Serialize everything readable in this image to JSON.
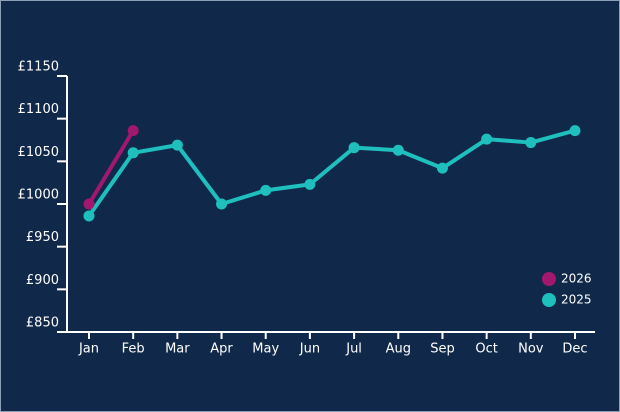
{
  "chart_data": {
    "type": "line",
    "categories": [
      "Jan",
      "Feb",
      "Mar",
      "Apr",
      "May",
      "Jun",
      "Jul",
      "Aug",
      "Sep",
      "Oct",
      "Nov",
      "Dec"
    ],
    "series": [
      {
        "name": "2026",
        "color": "#a3186f",
        "values": [
          1000,
          1086,
          null,
          null,
          null,
          null,
          null,
          null,
          null,
          null,
          null,
          null
        ]
      },
      {
        "name": "2025",
        "color": "#1fbfbd",
        "values": [
          986,
          1060,
          1069,
          1000,
          1016,
          1023,
          1066,
          1063,
          1042,
          1076,
          1072,
          1086
        ]
      }
    ],
    "ylim": [
      850,
      1150
    ],
    "yticks": [
      {
        "value": 850,
        "label": "£850"
      },
      {
        "value": 900,
        "label": "£900"
      },
      {
        "value": 950,
        "label": "£950"
      },
      {
        "value": 1000,
        "label": "£1000"
      },
      {
        "value": 1050,
        "label": "£1050"
      },
      {
        "value": 1100,
        "label": "£1100"
      },
      {
        "value": 1150,
        "label": "£1150"
      }
    ],
    "legend": "lower right"
  }
}
